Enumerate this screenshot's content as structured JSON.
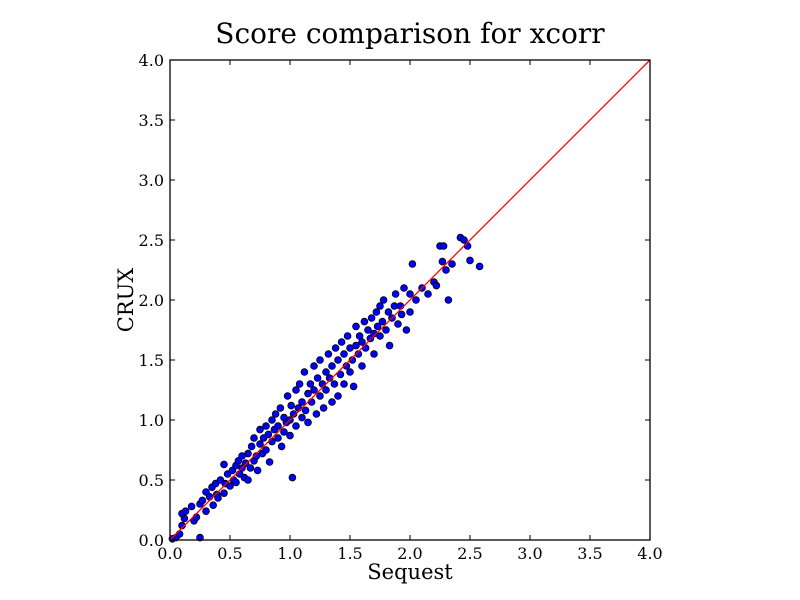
{
  "chart_data": {
    "type": "scatter",
    "title": "Score comparison for xcorr",
    "xlabel": "Sequest",
    "ylabel": "CRUX",
    "xlim": [
      0.0,
      4.0
    ],
    "ylim": [
      0.0,
      4.0
    ],
    "xticks": [
      "0.0",
      "0.5",
      "1.0",
      "1.5",
      "2.0",
      "2.5",
      "3.0",
      "3.5",
      "4.0"
    ],
    "yticks": [
      "0.0",
      "0.5",
      "1.0",
      "1.5",
      "2.0",
      "2.5",
      "3.0",
      "3.5",
      "4.0"
    ],
    "grid": false,
    "colors": {
      "marker_fill": "#0000ff",
      "marker_edge": "#000000",
      "reference_line": "#ff0000"
    },
    "reference_line": {
      "x": [
        0.0,
        4.0
      ],
      "y": [
        0.0,
        4.0
      ]
    },
    "points": [
      [
        0.02,
        0.01
      ],
      [
        0.05,
        0.02
      ],
      [
        0.08,
        0.05
      ],
      [
        0.1,
        0.12
      ],
      [
        0.12,
        0.18
      ],
      [
        0.1,
        0.22
      ],
      [
        0.13,
        0.24
      ],
      [
        0.18,
        0.28
      ],
      [
        0.2,
        0.16
      ],
      [
        0.22,
        0.19
      ],
      [
        0.25,
        0.02
      ],
      [
        0.25,
        0.3
      ],
      [
        0.27,
        0.33
      ],
      [
        0.3,
        0.24
      ],
      [
        0.3,
        0.4
      ],
      [
        0.33,
        0.36
      ],
      [
        0.35,
        0.44
      ],
      [
        0.36,
        0.29
      ],
      [
        0.38,
        0.47
      ],
      [
        0.39,
        0.38
      ],
      [
        0.4,
        0.35
      ],
      [
        0.42,
        0.5
      ],
      [
        0.45,
        0.39
      ],
      [
        0.45,
        0.63
      ],
      [
        0.46,
        0.47
      ],
      [
        0.48,
        0.55
      ],
      [
        0.5,
        0.45
      ],
      [
        0.52,
        0.58
      ],
      [
        0.53,
        0.5
      ],
      [
        0.55,
        0.62
      ],
      [
        0.55,
        0.48
      ],
      [
        0.57,
        0.66
      ],
      [
        0.58,
        0.55
      ],
      [
        0.6,
        0.6
      ],
      [
        0.6,
        0.7
      ],
      [
        0.62,
        0.52
      ],
      [
        0.63,
        0.64
      ],
      [
        0.65,
        0.72
      ],
      [
        0.65,
        0.5
      ],
      [
        0.67,
        0.6
      ],
      [
        0.68,
        0.78
      ],
      [
        0.7,
        0.66
      ],
      [
        0.7,
        0.85
      ],
      [
        0.72,
        0.7
      ],
      [
        0.73,
        0.58
      ],
      [
        0.75,
        0.8
      ],
      [
        0.75,
        0.92
      ],
      [
        0.77,
        0.72
      ],
      [
        0.78,
        0.85
      ],
      [
        0.8,
        0.75
      ],
      [
        0.8,
        0.95
      ],
      [
        0.82,
        0.88
      ],
      [
        0.83,
        0.65
      ],
      [
        0.85,
        1.0
      ],
      [
        0.85,
        0.82
      ],
      [
        0.87,
        0.92
      ],
      [
        0.88,
        1.05
      ],
      [
        0.9,
        0.85
      ],
      [
        0.9,
        0.95
      ],
      [
        0.92,
        1.1
      ],
      [
        0.93,
        0.78
      ],
      [
        0.95,
        1.02
      ],
      [
        0.95,
        0.9
      ],
      [
        0.97,
        0.98
      ],
      [
        0.98,
        1.2
      ],
      [
        1.0,
        1.0
      ],
      [
        1.0,
        0.87
      ],
      [
        1.01,
        1.12
      ],
      [
        1.02,
        0.52
      ],
      [
        1.03,
        1.05
      ],
      [
        1.05,
        0.95
      ],
      [
        1.05,
        1.25
      ],
      [
        1.07,
        1.1
      ],
      [
        1.08,
        1.3
      ],
      [
        1.1,
        1.02
      ],
      [
        1.1,
        1.15
      ],
      [
        1.12,
        1.4
      ],
      [
        1.13,
        1.08
      ],
      [
        1.15,
        1.22
      ],
      [
        1.15,
        0.98
      ],
      [
        1.17,
        1.3
      ],
      [
        1.18,
        1.15
      ],
      [
        1.2,
        1.45
      ],
      [
        1.2,
        1.25
      ],
      [
        1.22,
        1.05
      ],
      [
        1.23,
        1.35
      ],
      [
        1.25,
        1.2
      ],
      [
        1.25,
        1.5
      ],
      [
        1.27,
        1.3
      ],
      [
        1.28,
        1.1
      ],
      [
        1.3,
        1.4
      ],
      [
        1.3,
        1.25
      ],
      [
        1.32,
        1.55
      ],
      [
        1.33,
        1.35
      ],
      [
        1.35,
        1.15
      ],
      [
        1.35,
        1.45
      ],
      [
        1.37,
        1.3
      ],
      [
        1.38,
        1.6
      ],
      [
        1.4,
        1.5
      ],
      [
        1.4,
        1.2
      ],
      [
        1.42,
        1.38
      ],
      [
        1.43,
        1.65
      ],
      [
        1.45,
        1.55
      ],
      [
        1.45,
        1.3
      ],
      [
        1.47,
        1.45
      ],
      [
        1.48,
        1.7
      ],
      [
        1.5,
        1.6
      ],
      [
        1.5,
        1.4
      ],
      [
        1.52,
        1.5
      ],
      [
        1.53,
        1.28
      ],
      [
        1.55,
        1.62
      ],
      [
        1.55,
        1.78
      ],
      [
        1.57,
        1.55
      ],
      [
        1.58,
        1.7
      ],
      [
        1.6,
        1.65
      ],
      [
        1.6,
        1.45
      ],
      [
        1.62,
        1.82
      ],
      [
        1.63,
        1.6
      ],
      [
        1.65,
        1.75
      ],
      [
        1.67,
        1.68
      ],
      [
        1.68,
        1.85
      ],
      [
        1.7,
        1.72
      ],
      [
        1.7,
        1.55
      ],
      [
        1.72,
        1.9
      ],
      [
        1.73,
        1.78
      ],
      [
        1.75,
        1.7
      ],
      [
        1.75,
        1.95
      ],
      [
        1.77,
        1.82
      ],
      [
        1.78,
        2.0
      ],
      [
        1.8,
        1.75
      ],
      [
        1.82,
        1.9
      ],
      [
        1.83,
        1.62
      ],
      [
        1.85,
        1.85
      ],
      [
        1.87,
        1.95
      ],
      [
        1.88,
        2.05
      ],
      [
        1.9,
        1.8
      ],
      [
        1.92,
        1.95
      ],
      [
        1.93,
        1.88
      ],
      [
        1.95,
        2.1
      ],
      [
        1.97,
        1.75
      ],
      [
        2.0,
        1.9
      ],
      [
        2.0,
        2.05
      ],
      [
        2.02,
        2.3
      ],
      [
        2.05,
        2.0
      ],
      [
        2.1,
        2.1
      ],
      [
        2.15,
        2.05
      ],
      [
        2.2,
        2.15
      ],
      [
        2.22,
        2.12
      ],
      [
        2.25,
        2.45
      ],
      [
        2.27,
        2.32
      ],
      [
        2.28,
        2.45
      ],
      [
        2.3,
        2.25
      ],
      [
        2.32,
        2.0
      ],
      [
        2.35,
        2.3
      ],
      [
        2.42,
        2.52
      ],
      [
        2.45,
        2.5
      ],
      [
        2.48,
        2.45
      ],
      [
        2.5,
        2.33
      ],
      [
        2.58,
        2.28
      ]
    ]
  }
}
